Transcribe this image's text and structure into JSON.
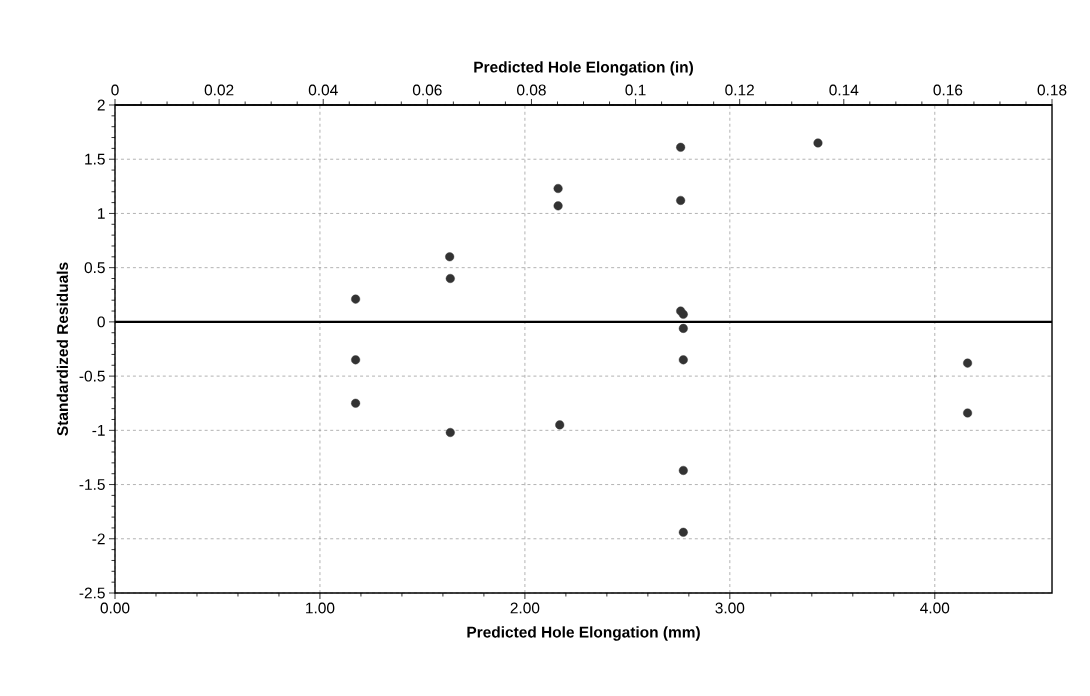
{
  "chart_data": {
    "type": "scatter",
    "xlabel": "Predicted Hole Elongation (mm)",
    "ylabel": "Standardized Residuals",
    "x2label": "Predicted Hole Elongation (in)",
    "x": [
      1.174,
      1.174,
      1.174,
      1.633,
      1.636,
      1.636,
      2.162,
      2.162,
      2.17,
      2.76,
      2.76,
      2.76,
      2.773,
      2.773,
      2.773,
      2.773,
      2.773,
      3.43,
      4.16,
      4.16
    ],
    "series": [
      {
        "color": "#333333",
        "values": [
          0.21,
          -0.35,
          -0.75,
          0.6,
          0.4,
          -1.02,
          1.23,
          1.07,
          -0.95,
          1.61,
          1.12,
          0.1,
          0.07,
          -0.06,
          -0.35,
          -1.37,
          -1.94,
          1.65,
          -0.38,
          -0.84
        ]
      }
    ],
    "marker": "circle",
    "xlim": [
      0,
      4.572
    ],
    "xticks": [
      {
        "value": 0,
        "label": "0.00"
      },
      {
        "value": 1,
        "label": "1.00"
      },
      {
        "value": 2,
        "label": "2.00"
      },
      {
        "value": 3,
        "label": "3.00"
      },
      {
        "value": 4,
        "label": "4.00"
      }
    ],
    "x2lim": [
      0,
      0.18
    ],
    "x2ticks": [
      0,
      0.02,
      0.04,
      0.06,
      0.08,
      0.1,
      0.12,
      0.14,
      0.16,
      0.18
    ],
    "ylim": [
      -2.5,
      2
    ],
    "yticks": [
      -2.5,
      -2,
      -1.5,
      -1,
      -0.5,
      0,
      0.5,
      1,
      1.5,
      2
    ],
    "ref_lines": [
      {
        "axis": "y",
        "value": 0,
        "color": "#000000"
      }
    ],
    "grid": true
  }
}
